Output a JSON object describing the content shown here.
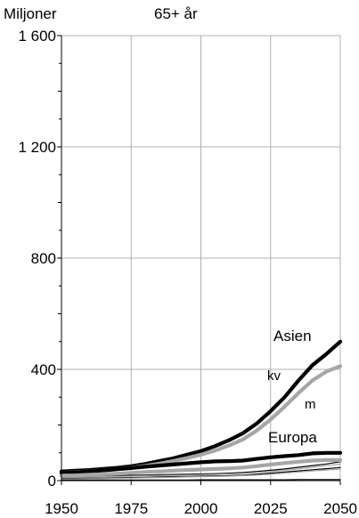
{
  "chart_data": {
    "type": "line",
    "ylabel": "Miljoner",
    "subtitle": "65+ år",
    "x_ticks": [
      1950,
      1975,
      2000,
      2025,
      2050
    ],
    "y_ticks": [
      0,
      400,
      800,
      1200,
      1600
    ],
    "y_tick_labels": [
      "0",
      "400",
      "800",
      "1 200",
      "1 600"
    ],
    "xlim": [
      1950,
      2050
    ],
    "ylim": [
      0,
      1600
    ],
    "grid": true,
    "x": [
      1950,
      1955,
      1960,
      1965,
      1970,
      1975,
      1980,
      1985,
      1990,
      1995,
      2000,
      2005,
      2010,
      2015,
      2020,
      2025,
      2030,
      2035,
      2040,
      2045,
      2050
    ],
    "series": [
      {
        "name": "Asien kv",
        "color": "#000000",
        "width": 4.2,
        "values": [
          33,
          36,
          38,
          42,
          46,
          52,
          60,
          70,
          80,
          93,
          106,
          124,
          145,
          170,
          205,
          250,
          300,
          360,
          415,
          455,
          500
        ]
      },
      {
        "name": "Asien m",
        "color": "#a6a6a6",
        "width": 4.2,
        "values": [
          28,
          31,
          33,
          37,
          41,
          46,
          53,
          61,
          70,
          81,
          93,
          108,
          126,
          148,
          180,
          220,
          266,
          315,
          360,
          392,
          412
        ]
      },
      {
        "name": "Europa kv",
        "color": "#000000",
        "width": 4.2,
        "values": [
          28,
          30,
          33,
          37,
          41,
          45,
          50,
          54,
          58,
          62,
          66,
          69,
          70,
          72,
          78,
          84,
          88,
          92,
          98,
          100,
          100
        ]
      },
      {
        "name": "Europa m",
        "color": "#a6a6a6",
        "width": 4.2,
        "values": [
          18,
          19,
          21,
          23,
          25,
          28,
          31,
          33,
          36,
          38,
          40,
          42,
          44,
          47,
          52,
          58,
          63,
          68,
          72,
          74,
          74
        ]
      },
      {
        "name": "",
        "color": "#000000",
        "width": 1.2,
        "values": [
          14,
          15,
          16,
          17,
          18,
          19,
          20,
          21,
          22,
          23,
          24,
          25,
          27,
          29,
          33,
          37,
          42,
          48,
          54,
          60,
          68
        ]
      },
      {
        "name": "",
        "color": "#a6a6a6",
        "width": 1.2,
        "values": [
          11,
          12,
          13,
          14,
          15,
          16,
          17,
          18,
          19,
          20,
          21,
          22,
          24,
          26,
          29,
          33,
          37,
          42,
          48,
          54,
          60
        ]
      },
      {
        "name": "",
        "color": "#000000",
        "width": 1.2,
        "values": [
          8,
          8,
          9,
          9,
          10,
          11,
          12,
          13,
          14,
          15,
          16,
          17,
          18,
          20,
          23,
          27,
          31,
          35,
          39,
          43,
          47
        ]
      },
      {
        "name": "",
        "color": "#a6a6a6",
        "width": 1.2,
        "values": [
          6,
          6,
          7,
          7,
          8,
          9,
          10,
          11,
          12,
          13,
          14,
          15,
          16,
          18,
          20,
          23,
          27,
          31,
          35,
          38,
          41
        ]
      },
      {
        "name": "",
        "color": "#000000",
        "width": 1.2,
        "values": [
          2,
          2,
          2,
          2,
          2,
          2,
          2,
          2,
          2,
          2,
          3,
          3,
          3,
          3,
          3,
          3,
          3,
          4,
          4,
          4,
          4
        ]
      }
    ],
    "annotations": [
      "Asien",
      "kv",
      "m",
      "Europa"
    ]
  }
}
